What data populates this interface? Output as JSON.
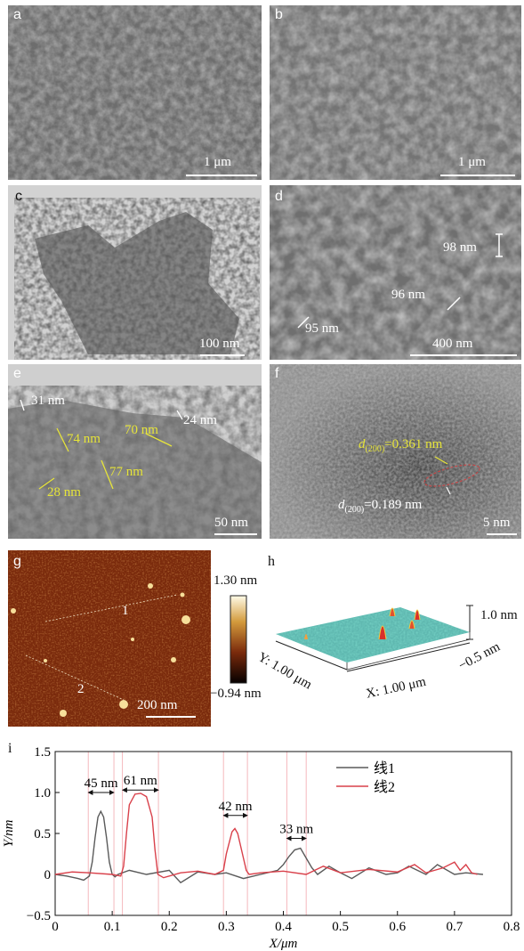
{
  "panels": {
    "a": {
      "label": "a",
      "scalebar": "1 μm"
    },
    "b": {
      "label": "b",
      "scalebar": "1 μm"
    },
    "c": {
      "label": "c",
      "scalebar": "100 nm"
    },
    "d": {
      "label": "d",
      "scalebar": "400 nm",
      "annotations": [
        "98 nm",
        "96 nm",
        "95 nm"
      ]
    },
    "e": {
      "label": "e",
      "scalebar": "50 nm",
      "annotations": [
        "31 nm",
        "24 nm",
        "74 nm",
        "70 nm",
        "77 nm",
        "28 nm"
      ]
    },
    "f": {
      "label": "f",
      "scalebar": "5 nm",
      "d1_prefix": "d",
      "d1_sub": "(200)",
      "d1_value": "=0.361 nm",
      "d2_prefix": "d",
      "d2_sub": "(200)",
      "d2_value": "=0.189 nm"
    },
    "g": {
      "label": "g",
      "scalebar": "200 nm",
      "line1": "1",
      "line2": "2",
      "colorbar_max": "1.30 nm",
      "colorbar_min": "−0.94 nm"
    },
    "h": {
      "label": "h",
      "z_label": "1.0 nm",
      "z_min": "−0.5 nm",
      "x_axis": "X: 1.00 μm",
      "y_axis": "Y: 1.00 μm"
    },
    "i": {
      "label": "i"
    }
  },
  "chart_data": {
    "type": "line",
    "xlabel": "X/μm",
    "ylabel": "Y/nm",
    "xlim": [
      0,
      0.8
    ],
    "ylim": [
      -0.5,
      1.5
    ],
    "xticks": [
      "0",
      "0.1",
      "0.2",
      "0.3",
      "0.4",
      "0.5",
      "0.6",
      "0.7",
      "0.8"
    ],
    "yticks": [
      "−0.5",
      "0",
      "0.5",
      "1.0",
      "1.5"
    ],
    "legend": {
      "placement": "top-right"
    },
    "series": [
      {
        "name": "线1",
        "color": "#5a5a5a",
        "x": [
          0,
          0.02,
          0.04,
          0.05,
          0.06,
          0.065,
          0.07,
          0.075,
          0.08,
          0.085,
          0.09,
          0.095,
          0.1,
          0.105,
          0.11,
          0.13,
          0.16,
          0.2,
          0.22,
          0.25,
          0.28,
          0.3,
          0.33,
          0.36,
          0.39,
          0.4,
          0.41,
          0.42,
          0.43,
          0.44,
          0.45,
          0.46,
          0.48,
          0.5,
          0.52,
          0.55,
          0.58,
          0.6,
          0.62,
          0.65,
          0.67,
          0.7,
          0.72,
          0.75
        ],
        "y": [
          0.0,
          -0.02,
          -0.05,
          -0.07,
          -0.02,
          0.15,
          0.45,
          0.7,
          0.77,
          0.7,
          0.45,
          0.15,
          0.0,
          -0.03,
          0.0,
          0.05,
          0.0,
          0.05,
          -0.1,
          0.03,
          0.0,
          0.02,
          -0.05,
          0.0,
          0.05,
          0.12,
          0.22,
          0.3,
          0.32,
          0.2,
          0.08,
          0.0,
          0.1,
          0.02,
          -0.05,
          0.08,
          0.0,
          0.02,
          0.1,
          0.0,
          0.12,
          0.0,
          0.02,
          0.0
        ]
      },
      {
        "name": "线2",
        "color": "#d9404a",
        "x": [
          0,
          0.03,
          0.06,
          0.1,
          0.115,
          0.12,
          0.125,
          0.13,
          0.14,
          0.15,
          0.16,
          0.17,
          0.175,
          0.18,
          0.19,
          0.22,
          0.25,
          0.28,
          0.295,
          0.3,
          0.31,
          0.315,
          0.32,
          0.33,
          0.335,
          0.34,
          0.36,
          0.4,
          0.44,
          0.47,
          0.5,
          0.55,
          0.6,
          0.63,
          0.65,
          0.68,
          0.7,
          0.71,
          0.72,
          0.73,
          0.74
        ],
        "y": [
          0.0,
          0.03,
          0.02,
          0.0,
          -0.02,
          0.1,
          0.5,
          0.85,
          0.98,
          0.99,
          0.95,
          0.7,
          0.3,
          0.0,
          -0.04,
          0.02,
          0.04,
          0.0,
          0.05,
          0.25,
          0.52,
          0.56,
          0.5,
          0.2,
          0.05,
          0.0,
          0.02,
          0.04,
          0.0,
          0.1,
          0.02,
          0.06,
          0.03,
          0.12,
          0.02,
          0.08,
          0.15,
          0.05,
          0.12,
          0.02,
          0.0
        ]
      }
    ],
    "annotations": [
      {
        "text": "45 nm",
        "x1": 0.058,
        "x2": 0.103,
        "y": 1.0
      },
      {
        "text": "61 nm",
        "x1": 0.118,
        "x2": 0.181,
        "y": 1.03
      },
      {
        "text": "42 nm",
        "x1": 0.295,
        "x2": 0.337,
        "y": 0.72
      },
      {
        "text": "33 nm",
        "x1": 0.406,
        "x2": 0.44,
        "y": 0.44
      }
    ],
    "guides_x": [
      0.058,
      0.103,
      0.118,
      0.181,
      0.295,
      0.337,
      0.406,
      0.44
    ]
  }
}
